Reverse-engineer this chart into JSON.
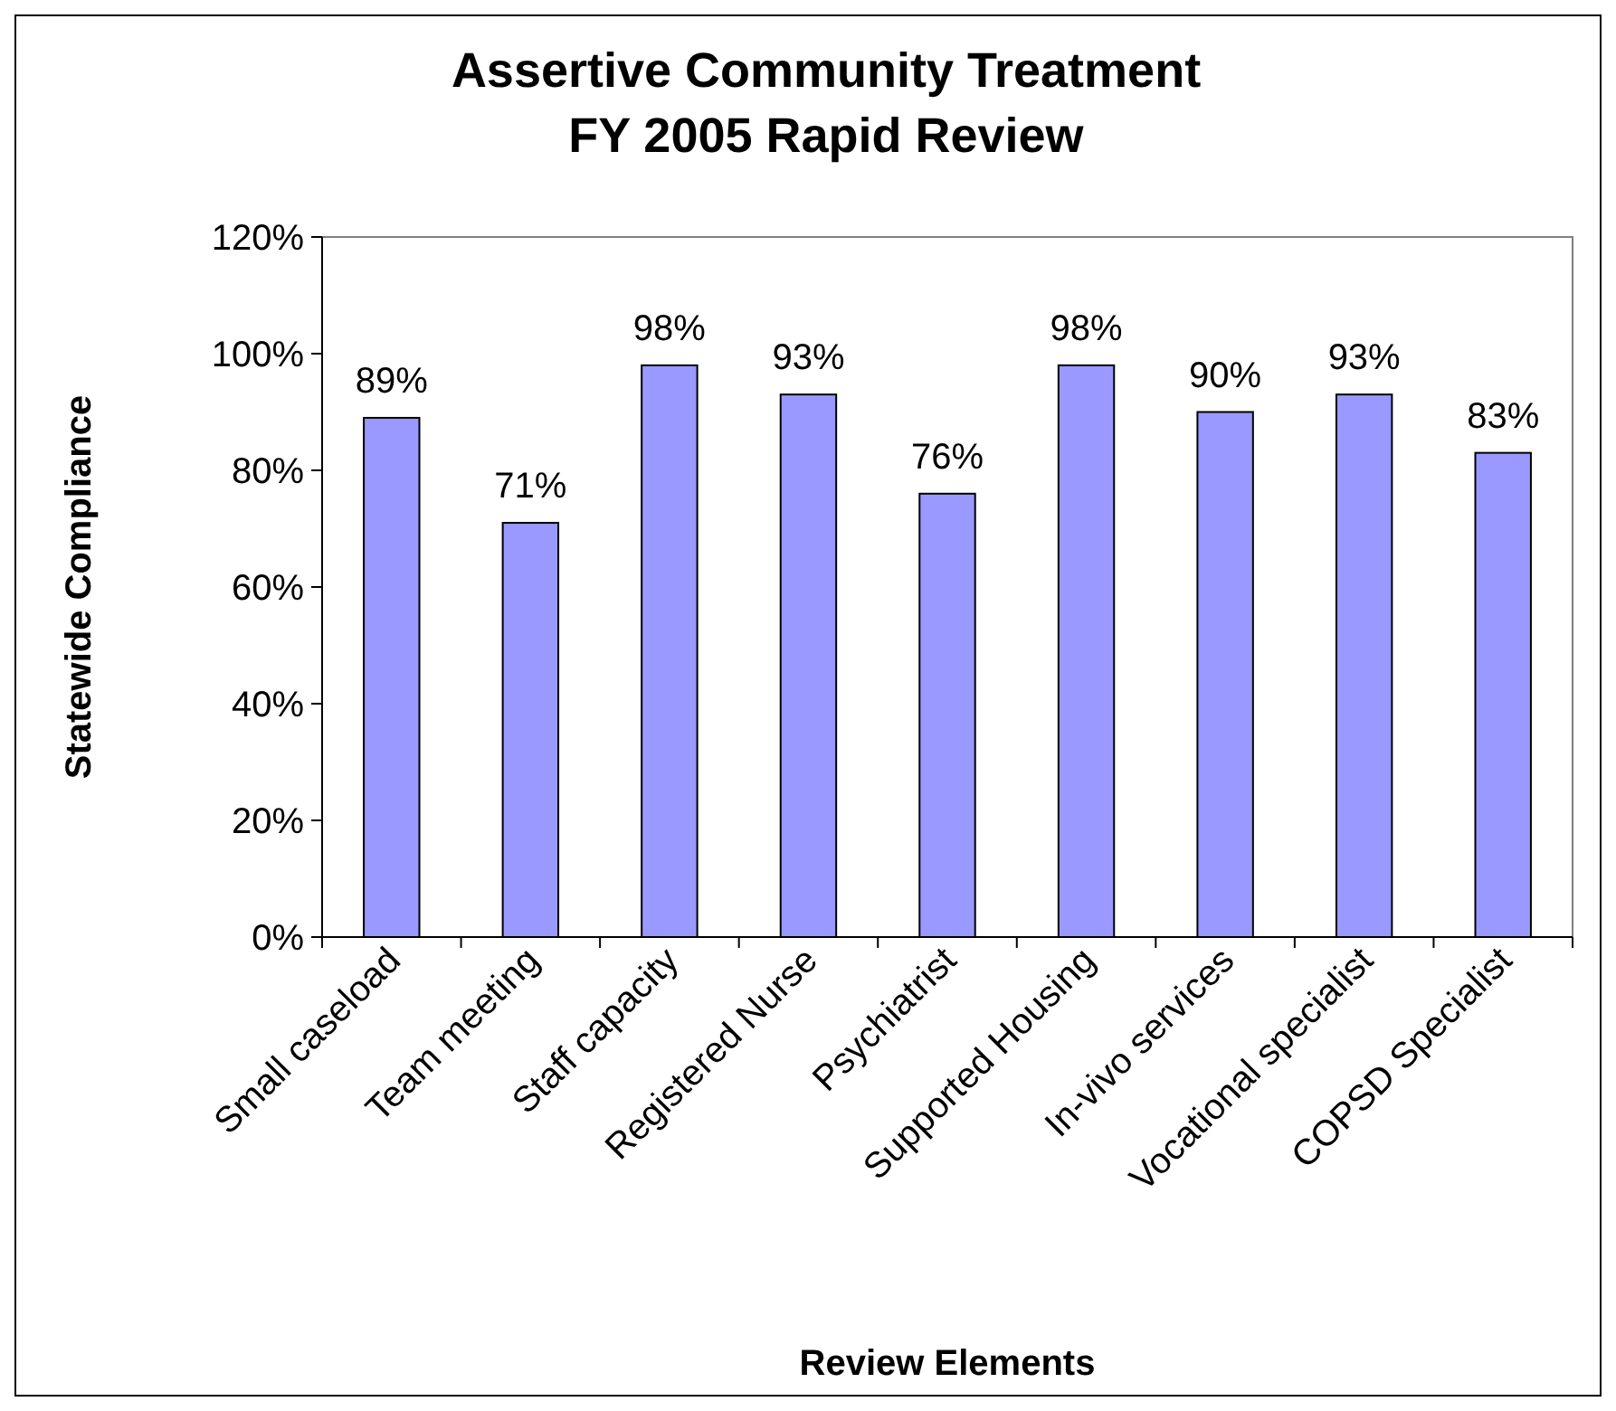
{
  "chart_data": {
    "type": "bar",
    "title": "Assertive Community Treatment\nFY 2005 Rapid Review",
    "xlabel": "Review Elements",
    "ylabel": "Statewide Compliance",
    "categories": [
      "Small caseload",
      "Team meeting",
      "Staff capacity",
      "Registered Nurse",
      "Psychiatrist",
      "Supported Housing",
      "In-vivo services",
      "Vocational specialist",
      "COPSD Specialist"
    ],
    "values": [
      89,
      71,
      98,
      93,
      76,
      98,
      90,
      93,
      83
    ],
    "value_labels": [
      "89%",
      "71%",
      "98%",
      "93%",
      "76%",
      "98%",
      "90%",
      "93%",
      "83%"
    ],
    "color": "#9999ff",
    "ylim": [
      0,
      120
    ],
    "yticks": [
      {
        "value": 0,
        "label": "0%"
      },
      {
        "value": 20,
        "label": "20%"
      },
      {
        "value": 40,
        "label": "40%"
      },
      {
        "value": 60,
        "label": "60%"
      },
      {
        "value": 80,
        "label": "80%"
      },
      {
        "value": 100,
        "label": "100%"
      },
      {
        "value": 120,
        "label": "120%"
      }
    ],
    "grid": false
  }
}
